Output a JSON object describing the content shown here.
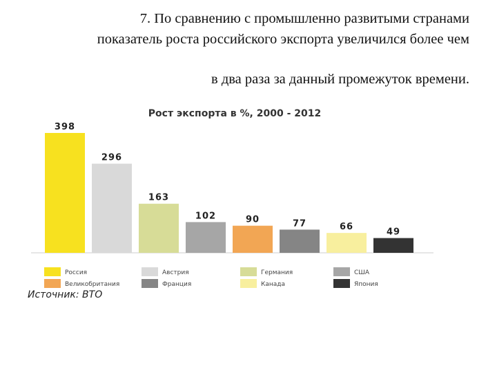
{
  "heading": {
    "line1": "7. По сравнению с промышленно развитыми странами",
    "line2": "показатель роста российского экспорта увеличился более чем",
    "line3": "в два раза за данный промежуток времени."
  },
  "source": "Источник: ВТО",
  "chart_data": {
    "type": "bar",
    "title": "Рост экспорта в %, 2000 - 2012",
    "categories": [
      "Россия",
      "Австрия",
      "Германия",
      "США",
      "Великобритания",
      "Франция",
      "Канада",
      "Япония"
    ],
    "values": [
      398,
      296,
      163,
      102,
      90,
      77,
      66,
      49
    ],
    "colors": [
      "#f7e11f",
      "#d9d9d9",
      "#d7dc97",
      "#a6a6a6",
      "#f2a654",
      "#858585",
      "#f8ef9e",
      "#333333"
    ],
    "xlabel": "",
    "ylabel": "",
    "ylim": [
      0,
      400
    ],
    "grid": false,
    "legend": "bottom"
  }
}
